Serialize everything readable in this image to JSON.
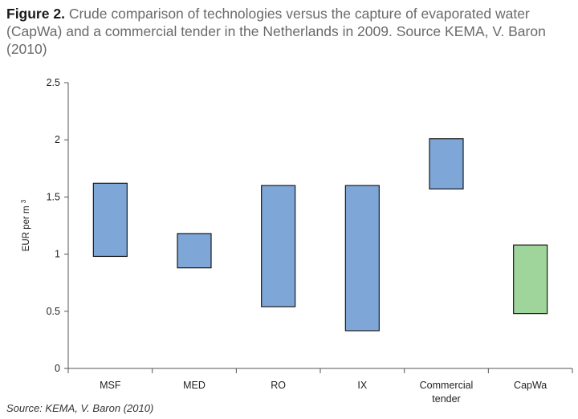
{
  "caption": {
    "figure_label": "Figure 2.",
    "text": "Crude comparison of technologies versus the capture of evaporated water (CapWa) and a commercial tender in the Netherlands in 2009. Source KEMA, V. Baron (2010)"
  },
  "source_note": "Source: KEMA, V. Baron (2010)",
  "chart_data": {
    "type": "bar",
    "subtype": "floating-range",
    "title": "",
    "xlabel": "",
    "ylabel": "EUR per m",
    "ylabel_superscript": "3",
    "ylim": [
      0,
      2.5
    ],
    "yticks": [
      "0",
      "0.5",
      "1",
      "1.5",
      "2",
      "2.5"
    ],
    "grid": false,
    "categories": [
      {
        "label": "MSF",
        "low": 0.98,
        "high": 1.62,
        "color": "#7ea7d8"
      },
      {
        "label": "MED",
        "low": 0.88,
        "high": 1.18,
        "color": "#7ea7d8"
      },
      {
        "label": "RO",
        "low": 0.54,
        "high": 1.6,
        "color": "#7ea7d8"
      },
      {
        "label": "IX",
        "low": 0.33,
        "high": 1.6,
        "color": "#7ea7d8"
      },
      {
        "label": "Commercial\ntender",
        "low": 1.57,
        "high": 2.01,
        "color": "#7ea7d8"
      },
      {
        "label": "CapWa",
        "low": 0.48,
        "high": 1.08,
        "color": "#9fd49a"
      }
    ]
  }
}
